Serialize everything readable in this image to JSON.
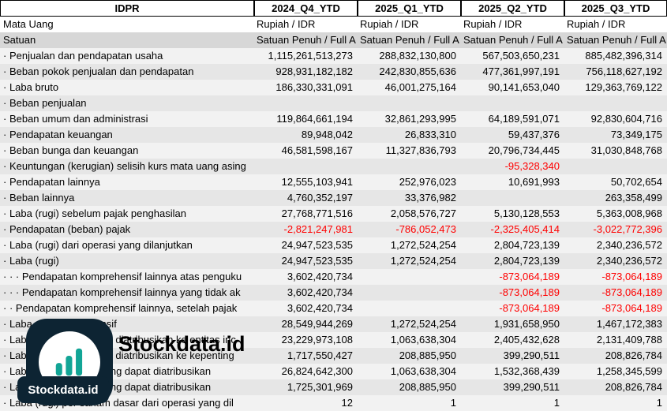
{
  "table": {
    "corner_label": "IDPR",
    "columns": [
      "2024_Q4_YTD",
      "2025_Q1_YTD",
      "2025_Q2_YTD",
      "2025_Q3_YTD"
    ],
    "meta_rows": [
      {
        "label": "Mata Uang",
        "bg": "white",
        "values": [
          "Rupiah / IDR",
          "Rupiah / IDR",
          "Rupiah / IDR",
          "Rupiah / IDR"
        ]
      },
      {
        "label": "Satuan",
        "bg": "satuan",
        "values": [
          "Satuan Penuh / Full A",
          "Satuan Penuh / Full A",
          "Satuan Penuh / Full A",
          "Satuan Penuh / Full A"
        ]
      }
    ],
    "rows": [
      {
        "label": "· Penjualan dan pendapatan usaha",
        "values": [
          "1,115,261,513,273",
          "288,832,130,800",
          "567,503,650,231",
          "885,482,396,314"
        ]
      },
      {
        "label": "· Beban pokok penjualan dan pendapatan",
        "values": [
          "928,931,182,182",
          "242,830,855,636",
          "477,361,997,191",
          "756,118,627,192"
        ]
      },
      {
        "label": "· Laba bruto",
        "values": [
          "186,330,331,091",
          "46,001,275,164",
          "90,141,653,040",
          "129,363,769,122"
        ]
      },
      {
        "label": "· Beban penjualan",
        "values": [
          "",
          "",
          "",
          ""
        ]
      },
      {
        "label": "· Beban umum dan administrasi",
        "values": [
          "119,864,661,194",
          "32,861,293,995",
          "64,189,591,071",
          "92,830,604,716"
        ]
      },
      {
        "label": "· Pendapatan keuangan",
        "values": [
          "89,948,042",
          "26,833,310",
          "59,437,376",
          "73,349,175"
        ]
      },
      {
        "label": "· Beban bunga dan keuangan",
        "values": [
          "46,581,598,167",
          "11,327,836,793",
          "20,796,734,445",
          "31,030,848,768"
        ]
      },
      {
        "label": "· Keuntungan (kerugian) selisih kurs mata uang asing",
        "values": [
          "",
          "",
          "-95,328,340",
          ""
        ]
      },
      {
        "label": "· Pendapatan lainnya",
        "values": [
          "12,555,103,941",
          "252,976,023",
          "10,691,993",
          "50,702,654"
        ]
      },
      {
        "label": "· Beban lainnya",
        "values": [
          "4,760,352,197",
          "33,376,982",
          "",
          "263,358,499"
        ]
      },
      {
        "label": "· Laba (rugi) sebelum pajak penghasilan",
        "values": [
          "27,768,771,516",
          "2,058,576,727",
          "5,130,128,553",
          "5,363,008,968"
        ]
      },
      {
        "label": "· Pendapatan (beban) pajak",
        "values": [
          "-2,821,247,981",
          "-786,052,473",
          "-2,325,405,414",
          "-3,022,772,396"
        ]
      },
      {
        "label": "· Laba (rugi) dari operasi yang dilanjutkan",
        "values": [
          "24,947,523,535",
          "1,272,524,254",
          "2,804,723,139",
          "2,340,236,572"
        ]
      },
      {
        "label": "· Laba (rugi)",
        "values": [
          "24,947,523,535",
          "1,272,524,254",
          "2,804,723,139",
          "2,340,236,572"
        ]
      },
      {
        "label": "· · · Pendapatan komprehensif lainnya atas penguku",
        "values": [
          "3,602,420,734",
          "",
          "-873,064,189",
          "-873,064,189"
        ]
      },
      {
        "label": "· · · Pendapatan komprehensif lainnya yang tidak ak",
        "values": [
          "3,602,420,734",
          "",
          "-873,064,189",
          "-873,064,189"
        ]
      },
      {
        "label": "· · Pendapatan komprehensif lainnya, setelah pajak",
        "values": [
          "3,602,420,734",
          "",
          "-873,064,189",
          "-873,064,189"
        ]
      },
      {
        "label": "· Laba rugi komprehensif",
        "values": [
          "28,549,944,269",
          "1,272,524,254",
          "1,931,658,950",
          "1,467,172,383"
        ]
      },
      {
        "label": "· Laba (rugi) yang dapat diatribusikan ke entitas inc",
        "values": [
          "23,229,973,108",
          "1,063,638,304",
          "2,405,432,628",
          "2,131,409,788"
        ]
      },
      {
        "label": "· Laba (rugi) yang dapat diatribusikan ke kepenting",
        "values": [
          "1,717,550,427",
          "208,885,950",
          "399,290,511",
          "208,826,784"
        ]
      },
      {
        "label": "· Laba komprehensif yang dapat diatribusikan",
        "values": [
          "26,824,642,300",
          "1,063,638,304",
          "1,532,368,439",
          "1,258,345,599"
        ]
      },
      {
        "label": "· Laba komprehensif yang dapat diatribusikan",
        "values": [
          "1,725,301,969",
          "208,885,950",
          "399,290,511",
          "208,826,784"
        ]
      },
      {
        "label": "· Laba (rugi) per saham dasar dari operasi yang dil",
        "values": [
          "12",
          "1",
          "1",
          "1"
        ]
      }
    ]
  },
  "watermark": {
    "brand_large": "Stockdata.id",
    "brand_small": "Stockdata.id"
  },
  "colors": {
    "negative": "#ff0000",
    "brand_navy": "#0d2433",
    "brand_teal": "#12a596",
    "row_odd": "#f2f2f2",
    "row_even": "#e6e6e6",
    "satuan_row": "#d7d7d7"
  }
}
